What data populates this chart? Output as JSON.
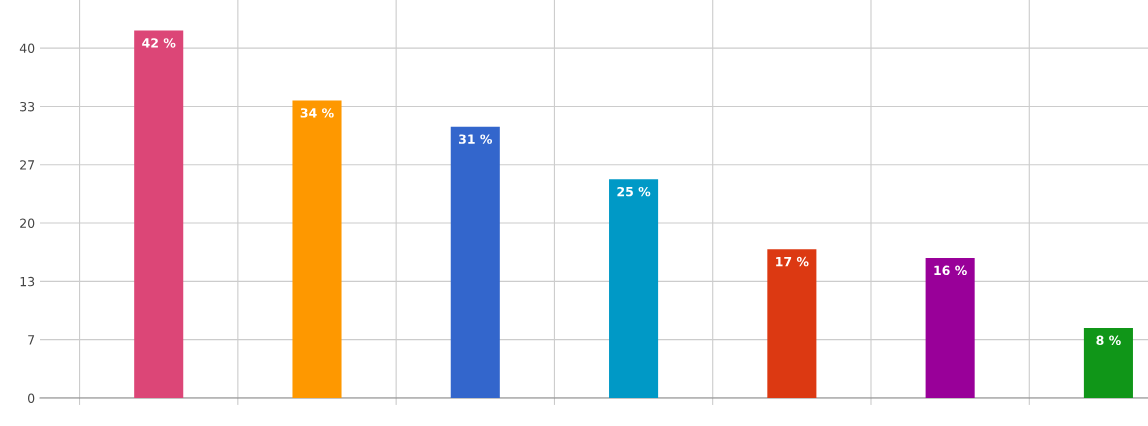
{
  "chart_data": {
    "type": "bar",
    "categories": [
      null,
      null,
      null,
      null,
      null,
      null,
      null
    ],
    "values": [
      42,
      34,
      31,
      25,
      17,
      16,
      8
    ],
    "colors": [
      "#dc4677",
      "#fe9800",
      "#3366cc",
      "#0099c6",
      "#dc3912",
      "#990099",
      "#109618"
    ],
    "value_labels": [
      "42 %",
      "34 %",
      "31 %",
      "25 %",
      "17 %",
      "16 %",
      "8 %"
    ],
    "ylim": [
      0,
      45.5
    ],
    "yticks": [
      0,
      {
        "value": 6.67,
        "label": "7"
      },
      {
        "value": 13.33,
        "label": "13"
      },
      20,
      {
        "value": 26.67,
        "label": "27"
      },
      {
        "value": 33.33,
        "label": "33"
      },
      40
    ],
    "grid": true
  }
}
